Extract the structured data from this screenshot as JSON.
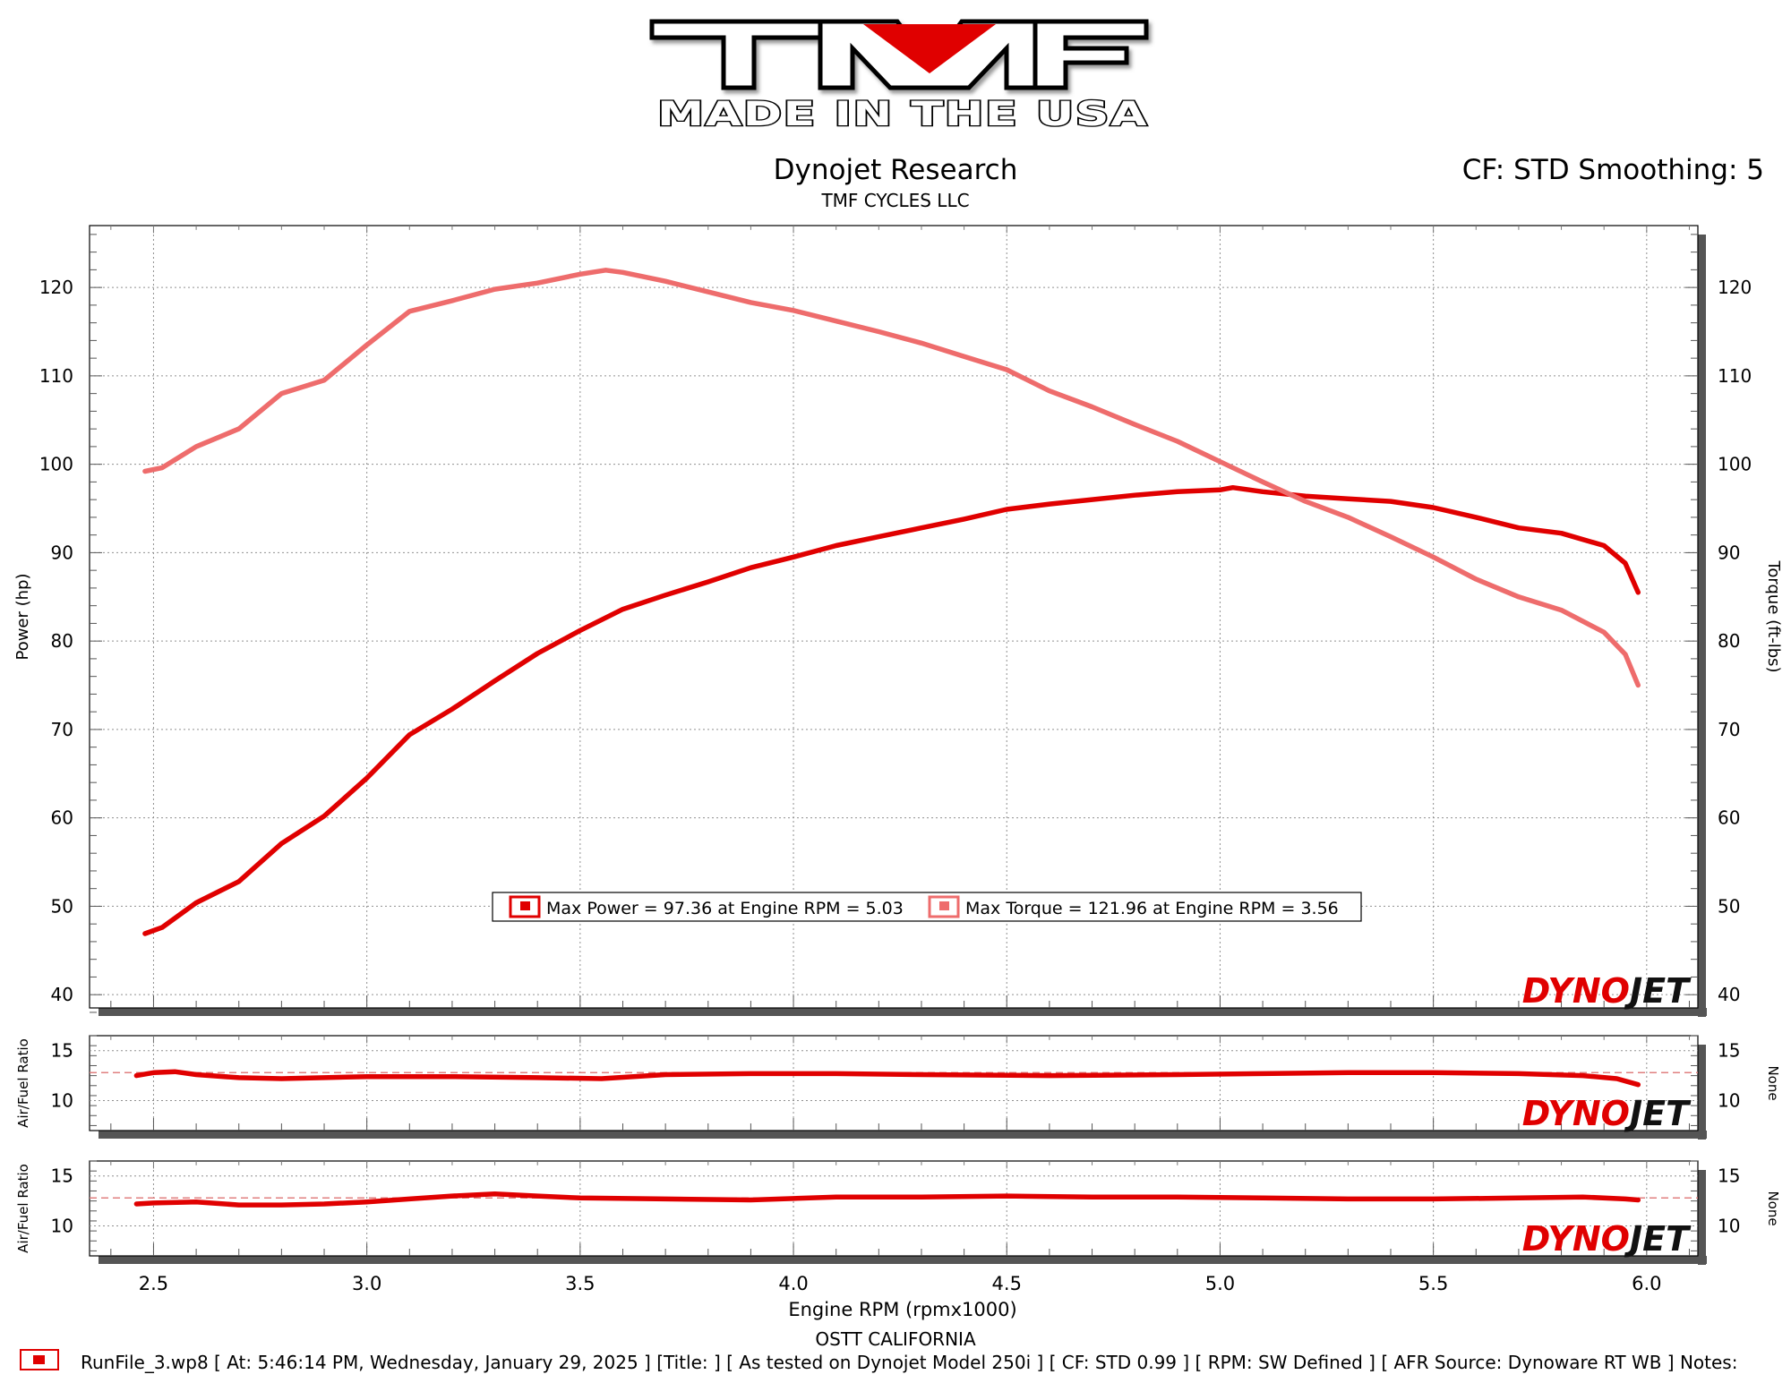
{
  "logo": {
    "brand": "TMF",
    "tagline": "MADE IN THE USA"
  },
  "header": {
    "title": "Dynojet Research",
    "subtitle": "TMF CYCLES LLC",
    "cf_info": "CF: STD Smoothing: 5"
  },
  "footer": {
    "location": "OSTT CALIFORNIA",
    "run_info": "RunFile_3.wp8 [ At: 5:46:14 PM, Wednesday, January 29, 2025 ] [Title: ]  [ As tested on Dynojet Model 250i ] [ CF: STD 0.99 ] [ RPM: SW Defined ] [ AFR Source: Dynoware RT WB ] Notes:"
  },
  "watermark": "DYNOJET",
  "colors": {
    "power": "#e00000",
    "torque": "#ee6c6c",
    "axis": "#000000",
    "grid": "#909090",
    "ref_line": "#e08080"
  },
  "chart_data": [
    {
      "type": "line",
      "xlabel": "Engine RPM (rpmx1000)",
      "ylabel": "Power (hp)",
      "y2label": "Torque (ft-lbs)",
      "xlim": [
        2.35,
        6.12
      ],
      "ylim": [
        38.5,
        127
      ],
      "y2lim": [
        38.5,
        127
      ],
      "xticks": [
        "2.5",
        "3.0",
        "3.5",
        "4.0",
        "4.5",
        "5.0",
        "5.5",
        "6.0"
      ],
      "yticks": [
        "40",
        "50",
        "60",
        "70",
        "80",
        "90",
        "100",
        "110",
        "120"
      ],
      "grid": true,
      "legend": [
        "Max Power = 97.36 at Engine RPM = 5.03",
        "Max Torque = 121.96 at Engine RPM = 3.56"
      ],
      "series": [
        {
          "axis": "left",
          "x": [
            2.48,
            2.52,
            2.6,
            2.7,
            2.8,
            2.9,
            3.0,
            3.1,
            3.2,
            3.3,
            3.4,
            3.5,
            3.6,
            3.7,
            3.8,
            3.9,
            4.0,
            4.1,
            4.2,
            4.3,
            4.4,
            4.5,
            4.6,
            4.7,
            4.8,
            4.9,
            5.0,
            5.03,
            5.1,
            5.2,
            5.3,
            5.4,
            5.5,
            5.6,
            5.7,
            5.8,
            5.9,
            5.95,
            5.98
          ],
          "values": [
            46.9,
            47.6,
            50.4,
            52.8,
            57.1,
            60.2,
            64.5,
            69.4,
            72.3,
            75.5,
            78.6,
            81.2,
            83.6,
            85.2,
            86.7,
            88.3,
            89.5,
            90.8,
            91.8,
            92.8,
            93.8,
            94.9,
            95.5,
            96.0,
            96.5,
            96.9,
            97.1,
            97.36,
            96.9,
            96.4,
            96.1,
            95.8,
            95.1,
            94.0,
            92.8,
            92.2,
            90.8,
            88.8,
            85.5
          ]
        },
        {
          "axis": "right",
          "x": [
            2.48,
            2.52,
            2.6,
            2.7,
            2.8,
            2.9,
            3.0,
            3.1,
            3.2,
            3.3,
            3.4,
            3.5,
            3.56,
            3.6,
            3.7,
            3.8,
            3.9,
            4.0,
            4.1,
            4.2,
            4.3,
            4.4,
            4.5,
            4.6,
            4.7,
            4.8,
            4.9,
            5.0,
            5.1,
            5.2,
            5.3,
            5.4,
            5.5,
            5.6,
            5.7,
            5.8,
            5.9,
            5.95,
            5.98
          ],
          "values": [
            99.2,
            99.6,
            102.0,
            104.0,
            108.0,
            109.5,
            113.5,
            117.3,
            118.5,
            119.8,
            120.5,
            121.5,
            121.96,
            121.7,
            120.7,
            119.5,
            118.3,
            117.4,
            116.2,
            115.0,
            113.7,
            112.2,
            110.7,
            108.3,
            106.5,
            104.5,
            102.6,
            100.3,
            98.0,
            95.8,
            94.0,
            91.8,
            89.5,
            87.0,
            85.0,
            83.5,
            81.0,
            78.5,
            75.0
          ]
        }
      ]
    },
    {
      "type": "line",
      "ylabel": "Air/Fuel Ratio",
      "y2label": "None",
      "xlim": [
        2.35,
        6.12
      ],
      "ylim": [
        7.0,
        16.5
      ],
      "yticks": [
        "10",
        "15"
      ],
      "grid": true,
      "reference_line": 12.8,
      "series": [
        {
          "x": [
            2.46,
            2.5,
            2.55,
            2.6,
            2.7,
            2.8,
            2.9,
            3.0,
            3.2,
            3.4,
            3.55,
            3.7,
            3.9,
            4.1,
            4.3,
            4.6,
            4.9,
            5.1,
            5.3,
            5.5,
            5.7,
            5.85,
            5.93,
            5.98
          ],
          "values": [
            12.5,
            12.8,
            12.9,
            12.6,
            12.3,
            12.2,
            12.3,
            12.4,
            12.4,
            12.3,
            12.2,
            12.6,
            12.7,
            12.7,
            12.6,
            12.5,
            12.6,
            12.7,
            12.8,
            12.8,
            12.7,
            12.5,
            12.2,
            11.6
          ]
        }
      ]
    },
    {
      "type": "line",
      "ylabel": "Air/Fuel Ratio",
      "y2label": "None",
      "xlim": [
        2.35,
        6.12
      ],
      "ylim": [
        7.0,
        16.5
      ],
      "yticks": [
        "10",
        "15"
      ],
      "grid": true,
      "reference_line": 12.8,
      "series": [
        {
          "x": [
            2.46,
            2.5,
            2.6,
            2.7,
            2.8,
            2.9,
            3.0,
            3.1,
            3.2,
            3.3,
            3.4,
            3.5,
            3.7,
            3.9,
            4.1,
            4.3,
            4.5,
            4.7,
            4.9,
            5.1,
            5.3,
            5.5,
            5.7,
            5.85,
            5.95,
            5.98
          ],
          "values": [
            12.2,
            12.3,
            12.4,
            12.1,
            12.1,
            12.2,
            12.4,
            12.7,
            13.0,
            13.2,
            13.0,
            12.8,
            12.7,
            12.6,
            12.9,
            12.9,
            13.0,
            12.9,
            12.9,
            12.8,
            12.7,
            12.7,
            12.8,
            12.9,
            12.7,
            12.6
          ]
        }
      ]
    }
  ]
}
